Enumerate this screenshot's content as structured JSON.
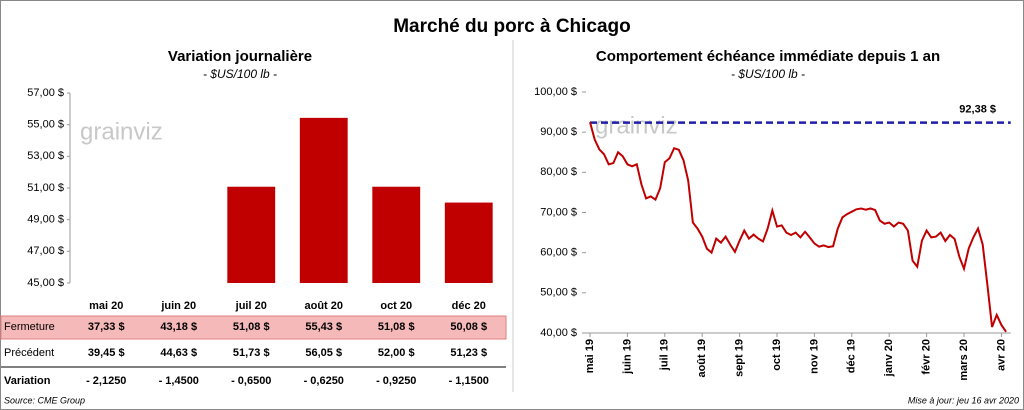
{
  "title": "Marché du porc à Chicago",
  "watermark": "grainviz",
  "chart_data": [
    {
      "type": "bar",
      "title": "Variation journalière",
      "subtitle": "- $US/100 lb -",
      "categories": [
        "mai 20",
        "juin 20",
        "juil 20",
        "août 20",
        "oct 20",
        "déc 20"
      ],
      "series": [
        {
          "name": "Fermeture",
          "color": "#c00000",
          "values": [
            37.33,
            43.18,
            51.08,
            55.43,
            51.08,
            50.08
          ],
          "value_labels": [
            "37,33 $",
            "43,18 $",
            "51,08 $",
            "55,43 $",
            "51,08 $",
            "50,08 $"
          ]
        }
      ],
      "ylim": [
        45,
        57
      ],
      "yticks": [
        {
          "value": 45,
          "label": "45,00 $"
        },
        {
          "value": 47,
          "label": "47,00 $"
        },
        {
          "value": 49,
          "label": "49,00 $"
        },
        {
          "value": 51,
          "label": "51,00 $"
        },
        {
          "value": 53,
          "label": "53,00 $"
        },
        {
          "value": 55,
          "label": "55,00 $"
        },
        {
          "value": 57,
          "label": "57,00 $"
        }
      ]
    },
    {
      "type": "line",
      "title": "Comportement échéance immédiate depuis 1 an",
      "subtitle": "- $US/100 lb -",
      "color": "#c00000",
      "x": [
        0,
        0.125,
        0.25,
        0.375,
        0.5,
        0.625,
        0.75,
        0.875,
        1,
        1.125,
        1.25,
        1.375,
        1.5,
        1.625,
        1.75,
        1.875,
        2,
        2.125,
        2.25,
        2.375,
        2.5,
        2.625,
        2.75,
        2.875,
        3,
        3.125,
        3.25,
        3.375,
        3.5,
        3.625,
        3.75,
        3.875,
        4,
        4.125,
        4.25,
        4.375,
        4.5,
        4.625,
        4.75,
        4.875,
        5,
        5.125,
        5.25,
        5.375,
        5.5,
        5.625,
        5.75,
        5.875,
        6,
        6.125,
        6.25,
        6.375,
        6.5,
        6.625,
        6.75,
        6.875,
        7,
        7.125,
        7.25,
        7.375,
        7.5,
        7.625,
        7.75,
        7.875,
        8,
        8.125,
        8.25,
        8.375,
        8.5,
        8.625,
        8.75,
        8.875,
        9,
        9.125,
        9.25,
        9.375,
        9.5,
        9.625,
        9.75,
        9.875,
        10,
        10.125,
        10.25,
        10.375,
        10.5,
        10.625,
        10.75,
        10.875,
        11,
        11.125
      ],
      "values": [
        92.5,
        88.2,
        85.7,
        84.5,
        82,
        82.3,
        85,
        84,
        82,
        81.5,
        82,
        77,
        73.5,
        74,
        73.2,
        76,
        82.5,
        83.5,
        86,
        85.6,
        83,
        78,
        67.5,
        66,
        64,
        61,
        60,
        63.5,
        62.5,
        64,
        62,
        60.2,
        63,
        65.5,
        63.5,
        64.5,
        63.5,
        62.8,
        66,
        70.5,
        66.5,
        66.8,
        65,
        64.4,
        65,
        63.8,
        65.2,
        63.8,
        62.3,
        61.5,
        61.8,
        61.4,
        61.6,
        66,
        68.8,
        69.6,
        70.2,
        70.8,
        71,
        70.7,
        71,
        70.6,
        68,
        67.2,
        67.5,
        66.5,
        67.5,
        67.2,
        65.5,
        58,
        56.5,
        63,
        65.5,
        63.8,
        64,
        65,
        62.9,
        64.4,
        63.4,
        59,
        56,
        61,
        63.8,
        66,
        62,
        52,
        41.5,
        44.5,
        42,
        40.3
      ],
      "xlim": [
        0,
        11.25
      ],
      "xticks": [
        {
          "value": 0,
          "label": "mai 19"
        },
        {
          "value": 1,
          "label": "juin 19"
        },
        {
          "value": 2,
          "label": "juil 19"
        },
        {
          "value": 3,
          "label": "août 19"
        },
        {
          "value": 4,
          "label": "sept 19"
        },
        {
          "value": 5,
          "label": "oct 19"
        },
        {
          "value": 6,
          "label": "nov 19"
        },
        {
          "value": 7,
          "label": "déc 19"
        },
        {
          "value": 8,
          "label": "janv 20"
        },
        {
          "value": 9,
          "label": "févr 20"
        },
        {
          "value": 10,
          "label": "mars 20"
        },
        {
          "value": 11,
          "label": "avr 20"
        }
      ],
      "ylim": [
        40,
        100
      ],
      "yticks": [
        {
          "value": 40,
          "label": "40,00 $"
        },
        {
          "value": 50,
          "label": "50,00 $"
        },
        {
          "value": 60,
          "label": "60,00 $"
        },
        {
          "value": 70,
          "label": "70,00 $"
        },
        {
          "value": 80,
          "label": "80,00 $"
        },
        {
          "value": 90,
          "label": "90,00 $"
        },
        {
          "value": 100,
          "label": "100,00 $"
        }
      ],
      "reference": {
        "value": 92.38,
        "label": "92,38 $",
        "color": "#1f1fa8"
      }
    }
  ],
  "table": {
    "rows": [
      {
        "label": "Précédent",
        "values": [
          39.45,
          44.63,
          51.73,
          56.05,
          52.0,
          51.23
        ],
        "value_labels": [
          "39,45 $",
          "44,63 $",
          "51,73 $",
          "56,05 $",
          "52,00 $",
          "51,23 $"
        ]
      },
      {
        "label": "Variation",
        "values": [
          -2.125,
          -1.45,
          -0.65,
          -0.625,
          -0.925,
          -1.15
        ],
        "value_labels": [
          "- 2,1250",
          "- 1,4500",
          "- 0,6500",
          "- 0,6250",
          "- 0,9250",
          "- 1,1500"
        ]
      }
    ]
  },
  "source": "Source: CME Group",
  "updated": "Mise à jour: jeu 16 avr 2020"
}
